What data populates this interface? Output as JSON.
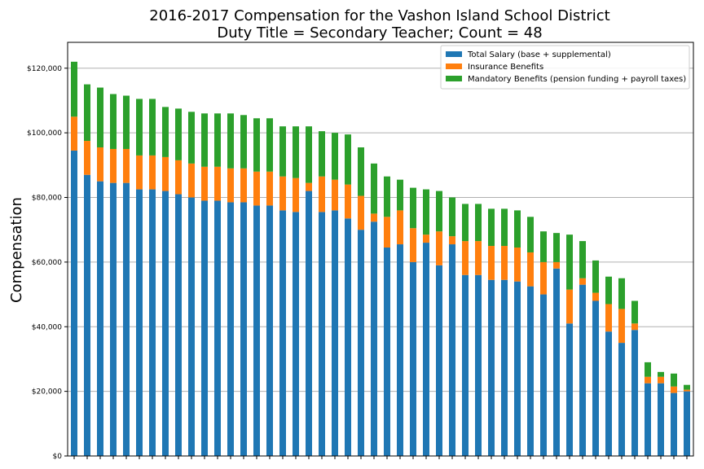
{
  "chart_data": {
    "type": "bar",
    "stacked": true,
    "title": [
      "2016-2017 Compensation for the Vashon Island School District",
      "Duty Title = Secondary Teacher; Count = 48"
    ],
    "xlabel": "",
    "ylabel": "Compensation",
    "ylim": [
      0,
      128000
    ],
    "yticks": [
      0,
      20000,
      40000,
      60000,
      80000,
      100000,
      120000
    ],
    "ytick_labels": [
      "$0",
      "$20,000",
      "$40,000",
      "$60,000",
      "$80,000",
      "$100,000",
      "$120,000"
    ],
    "grid": "horizontal",
    "legend_position": "top-right",
    "series": [
      {
        "name": "Total Salary (base + supplemental)",
        "color": "#1f77b4",
        "values": [
          94500,
          87000,
          85000,
          84500,
          84500,
          82500,
          82500,
          82000,
          81000,
          80000,
          79000,
          79000,
          78500,
          78500,
          77500,
          77500,
          76000,
          75500,
          82000,
          75500,
          76000,
          73500,
          70000,
          72500,
          64500,
          65500,
          60000,
          66000,
          59000,
          65500,
          56000,
          56000,
          54500,
          54500,
          54000,
          52500,
          50000,
          58000,
          41000,
          53000,
          48000,
          38500,
          35000,
          39000,
          22500,
          22500,
          19500,
          20000
        ]
      },
      {
        "name": "Insurance Benefits",
        "color": "#ff7f0e",
        "values": [
          10500,
          10500,
          10500,
          10500,
          10500,
          10500,
          10500,
          10500,
          10500,
          10500,
          10500,
          10500,
          10500,
          10500,
          10500,
          10500,
          10500,
          10500,
          2500,
          11000,
          9500,
          10500,
          10500,
          2500,
          9500,
          10500,
          10500,
          2500,
          10500,
          2500,
          10500,
          10500,
          10500,
          10500,
          10500,
          10500,
          10000,
          2000,
          10500,
          2000,
          2500,
          8500,
          10500,
          2000,
          2000,
          2000,
          2000,
          500
        ]
      },
      {
        "name": "Mandatory Benefits (pension funding + payroll taxes)",
        "color": "#2ca02c",
        "values": [
          17000,
          17500,
          18500,
          17000,
          16500,
          17500,
          17500,
          15500,
          16000,
          16000,
          16500,
          16500,
          17000,
          16500,
          16500,
          16500,
          15500,
          16000,
          17500,
          14000,
          14500,
          15500,
          15000,
          15500,
          12500,
          9500,
          12500,
          14000,
          12500,
          12000,
          11500,
          11500,
          11500,
          11500,
          11500,
          11000,
          9500,
          9000,
          17000,
          11500,
          10000,
          8500,
          9500,
          7000,
          4500,
          1500,
          4000,
          1500
        ]
      }
    ]
  }
}
